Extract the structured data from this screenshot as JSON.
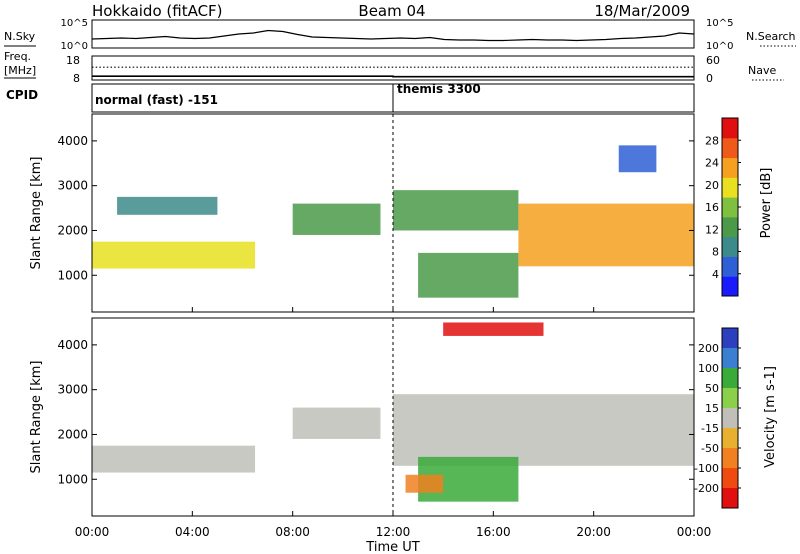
{
  "title": {
    "left": "Hokkaido (fitACF)",
    "center": "Beam 04",
    "right": "18/Mar/2009"
  },
  "chart_data": [
    {
      "type": "line",
      "panel": "noise",
      "left_label": "N.Sky",
      "right_label": "N.Search",
      "left_ticks": [
        "10^5",
        "10^0"
      ],
      "right_ticks": [
        "10^5",
        "10^0"
      ],
      "series": [
        {
          "values": [
            1.4,
            1.5,
            1.6,
            1.5,
            1.7,
            1.9,
            1.6,
            1.5,
            1.6,
            2.0,
            2.4,
            2.6,
            3.1,
            2.9,
            2.3,
            1.8,
            1.7,
            1.6,
            1.5,
            1.4,
            1.5,
            1.6,
            1.5,
            1.7,
            1.3,
            1.2,
            1.2,
            1.1,
            1.1,
            1.2,
            1.3,
            1.2,
            1.2,
            1.1,
            1.2,
            1.3,
            1.5,
            1.6,
            1.8,
            2.0,
            2.6,
            2.4
          ]
        }
      ]
    },
    {
      "type": "line",
      "panel": "frequency",
      "left_label_line1": "Freq.",
      "left_label_line2": "[MHz]",
      "right_label": "Nave",
      "left_ticks": [
        "18",
        "8"
      ],
      "right_ticks": [
        "60",
        "0"
      ],
      "freq_mhz": {
        "start": 9.6,
        "change_at_ut": 12.0,
        "end": 9.4
      },
      "nave_level": 32
    },
    {
      "type": "table",
      "panel": "cpid",
      "label": "CPID",
      "segments": [
        {
          "start_ut": 0,
          "end_ut": 12,
          "text": "normal (fast) -151"
        },
        {
          "start_ut": 12,
          "end_ut": 24,
          "text": "themis 3300"
        }
      ]
    },
    {
      "type": "heatmap",
      "panel": "power",
      "ylabel": "Slant Range [km]",
      "ylim": [
        180,
        4600
      ],
      "yticks": [
        1000,
        2000,
        3000,
        4000
      ],
      "xlim_hours": [
        0,
        24
      ],
      "colorbar": {
        "label": "Power [dB]",
        "ticks": [
          4,
          8,
          12,
          16,
          20,
          24,
          28
        ],
        "range": [
          0,
          32
        ]
      },
      "echo_regions": [
        {
          "t0": 0.0,
          "t1": 6.5,
          "r0": 1150,
          "r1": 1750,
          "value": 20
        },
        {
          "t0": 1.0,
          "t1": 5.0,
          "r0": 2350,
          "r1": 2750,
          "value": 8
        },
        {
          "t0": 8.0,
          "t1": 11.5,
          "r0": 1900,
          "r1": 2600,
          "value": 12
        },
        {
          "t0": 12.0,
          "t1": 17.0,
          "r0": 2000,
          "r1": 2900,
          "value": 13
        },
        {
          "t0": 13.0,
          "t1": 17.0,
          "r0": 500,
          "r1": 1500,
          "value": 12
        },
        {
          "t0": 17.0,
          "t1": 24.0,
          "r0": 1200,
          "r1": 2600,
          "value": 22
        },
        {
          "t0": 21.0,
          "t1": 22.5,
          "r0": 3300,
          "r1": 3900,
          "value": 6
        }
      ]
    },
    {
      "type": "heatmap",
      "panel": "velocity",
      "ylabel": "Slant Range [km]",
      "ylim": [
        180,
        4600
      ],
      "yticks": [
        1000,
        2000,
        3000,
        4000
      ],
      "xlim_hours": [
        0,
        24
      ],
      "colorbar": {
        "label": "Velocity [m s-1]",
        "ticks": [
          "200",
          "100",
          "50",
          "15",
          "-15",
          "-50",
          "-100",
          "-200"
        ],
        "range": [
          -250,
          250
        ]
      },
      "echo_regions": [
        {
          "t0": 0.0,
          "t1": 6.5,
          "r0": 1150,
          "r1": 1750,
          "value": 0
        },
        {
          "t0": 8.0,
          "t1": 11.5,
          "r0": 1900,
          "r1": 2600,
          "value": 0
        },
        {
          "t0": 12.0,
          "t1": 24.0,
          "r0": 1300,
          "r1": 2900,
          "value": 0
        },
        {
          "t0": 13.0,
          "t1": 17.0,
          "r0": 500,
          "r1": 1500,
          "value": 70
        },
        {
          "t0": 12.5,
          "t1": 14.0,
          "r0": 700,
          "r1": 1100,
          "value": -70
        },
        {
          "t0": 14.0,
          "t1": 18.0,
          "r0": 4200,
          "r1": 4500,
          "value": -230
        }
      ]
    }
  ],
  "xaxis": {
    "ticks": [
      "00:00",
      "04:00",
      "08:00",
      "12:00",
      "16:00",
      "20:00",
      "00:00"
    ],
    "label": "Time UT"
  },
  "palettes": {
    "power": [
      "#1a1aff",
      "#2f5fd6",
      "#3d8a8a",
      "#4a9a4a",
      "#7fc040",
      "#e8e020",
      "#f5a020",
      "#ef5a1a",
      "#e01010"
    ],
    "velocity_pos": [
      "#2b3fbf",
      "#3a7fd0",
      "#3aaa3a",
      "#8ad04a"
    ],
    "velocity_neg": [
      "#e8b030",
      "#f08020",
      "#ef4a10",
      "#e01010"
    ],
    "velocity_zero": "#c0c0b8"
  }
}
